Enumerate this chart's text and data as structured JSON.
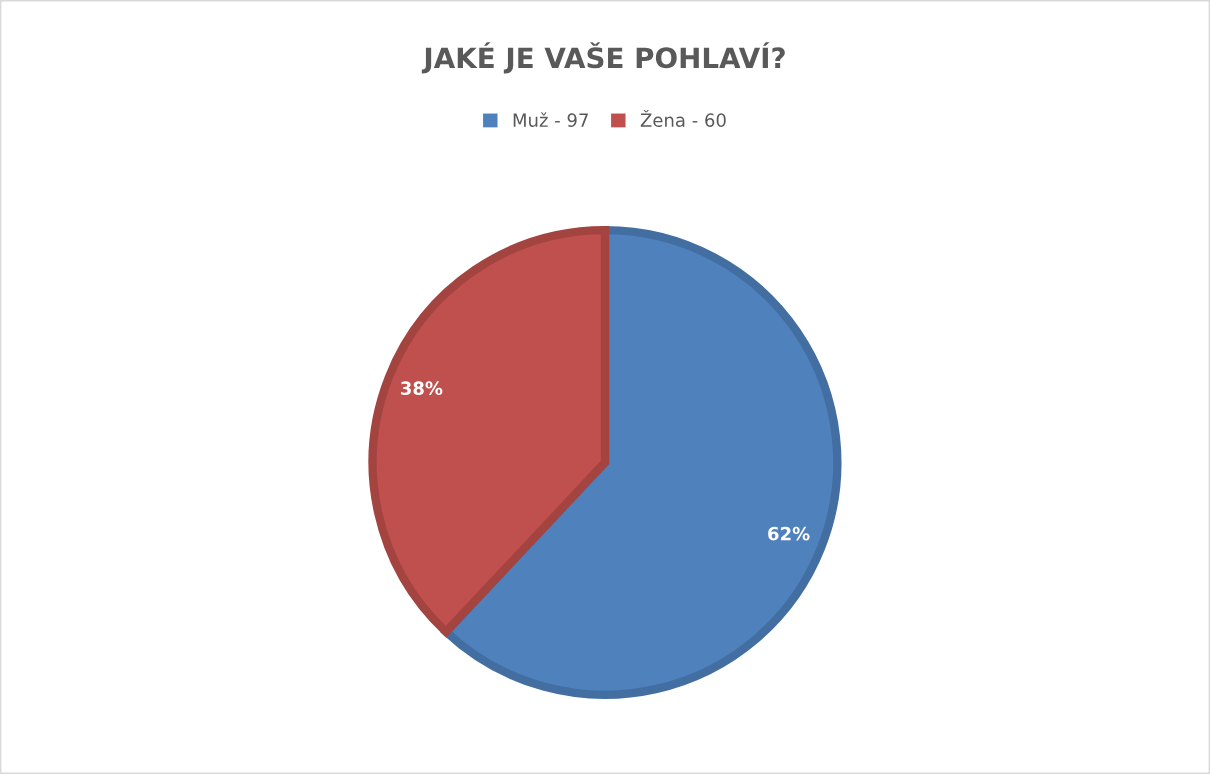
{
  "chart_data": {
    "type": "pie",
    "title": "JAKÉ JE VAŠE POHLAVÍ?",
    "categories": [
      "Muž - 97",
      "Žena - 60"
    ],
    "values": [
      62,
      38
    ],
    "value_labels": [
      "62%",
      "38%"
    ],
    "colors": [
      "#4f81bd",
      "#c0504d"
    ],
    "legend": "top"
  }
}
